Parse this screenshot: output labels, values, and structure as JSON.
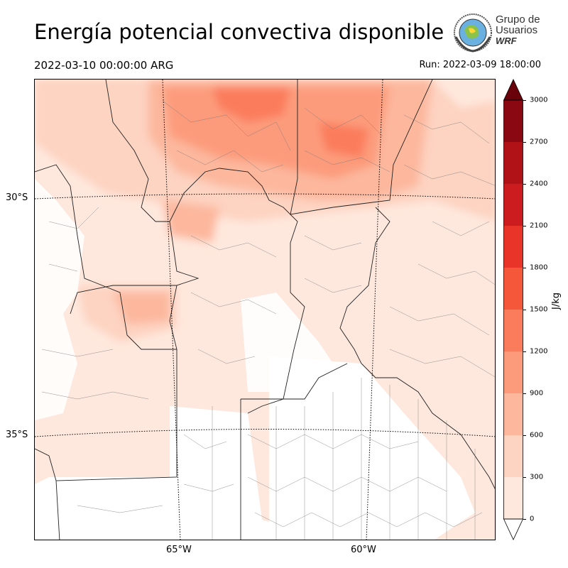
{
  "header": {
    "title": "Energía potencial convectiva disponible",
    "valid_time": "2022-03-10 00:00:00 ARG",
    "run_time": "Run: 2022-03-09 18:00:00"
  },
  "logo": {
    "line1": "Grupo de",
    "line2": "Usuarios",
    "line3": "WRF",
    "icon": "globe-seal-icon"
  },
  "map": {
    "lat_labels": [
      "30°S",
      "35°S"
    ],
    "lon_labels": [
      "65°W",
      "60°W"
    ]
  },
  "colorbar": {
    "unit": "J/kg",
    "ticks": [
      "0",
      "300",
      "600",
      "900",
      "1200",
      "1500",
      "1800",
      "2100",
      "2400",
      "2700",
      "3000"
    ],
    "colors": [
      "#fee8dd",
      "#fdd3c1",
      "#fcb79d",
      "#fc9b7b",
      "#fb7c5c",
      "#f5573b",
      "#e93529",
      "#cc1c1f",
      "#b01217",
      "#8a0811",
      "#6a020c"
    ],
    "extend": "both"
  }
}
